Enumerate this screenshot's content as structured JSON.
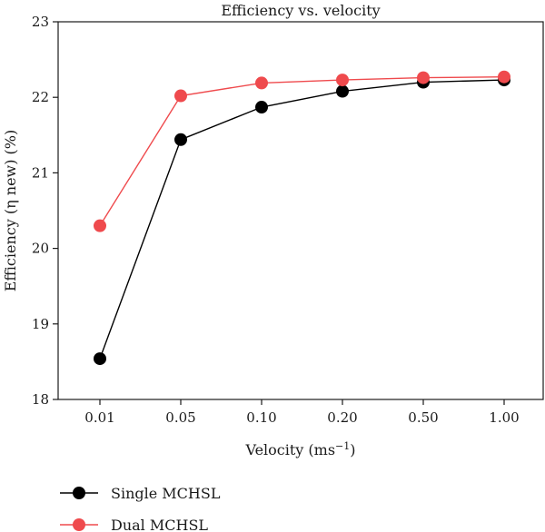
{
  "chart_data": {
    "type": "line",
    "title": "Efficiency vs. velocity",
    "xlabel": "Velocity (ms",
    "xlabel_sup": "−1",
    "xlabel_end": ")",
    "ylabel": "Efficiency (η new) (%)",
    "categories": [
      "0.01",
      "0.05",
      "0.10",
      "0.20",
      "0.50",
      "1.00"
    ],
    "ylim": [
      18,
      23
    ],
    "yticks": [
      "18",
      "19",
      "20",
      "21",
      "22",
      "23"
    ],
    "grid": false,
    "legend_position": "bottom-left",
    "series": [
      {
        "name": "Single MCHSL",
        "color": "#000000",
        "values": [
          18.54,
          21.44,
          21.87,
          22.08,
          22.2,
          22.23
        ]
      },
      {
        "name": "Dual MCHSL",
        "color": "#ef4a4d",
        "values": [
          20.3,
          22.02,
          22.19,
          22.23,
          22.26,
          22.27
        ]
      }
    ]
  }
}
